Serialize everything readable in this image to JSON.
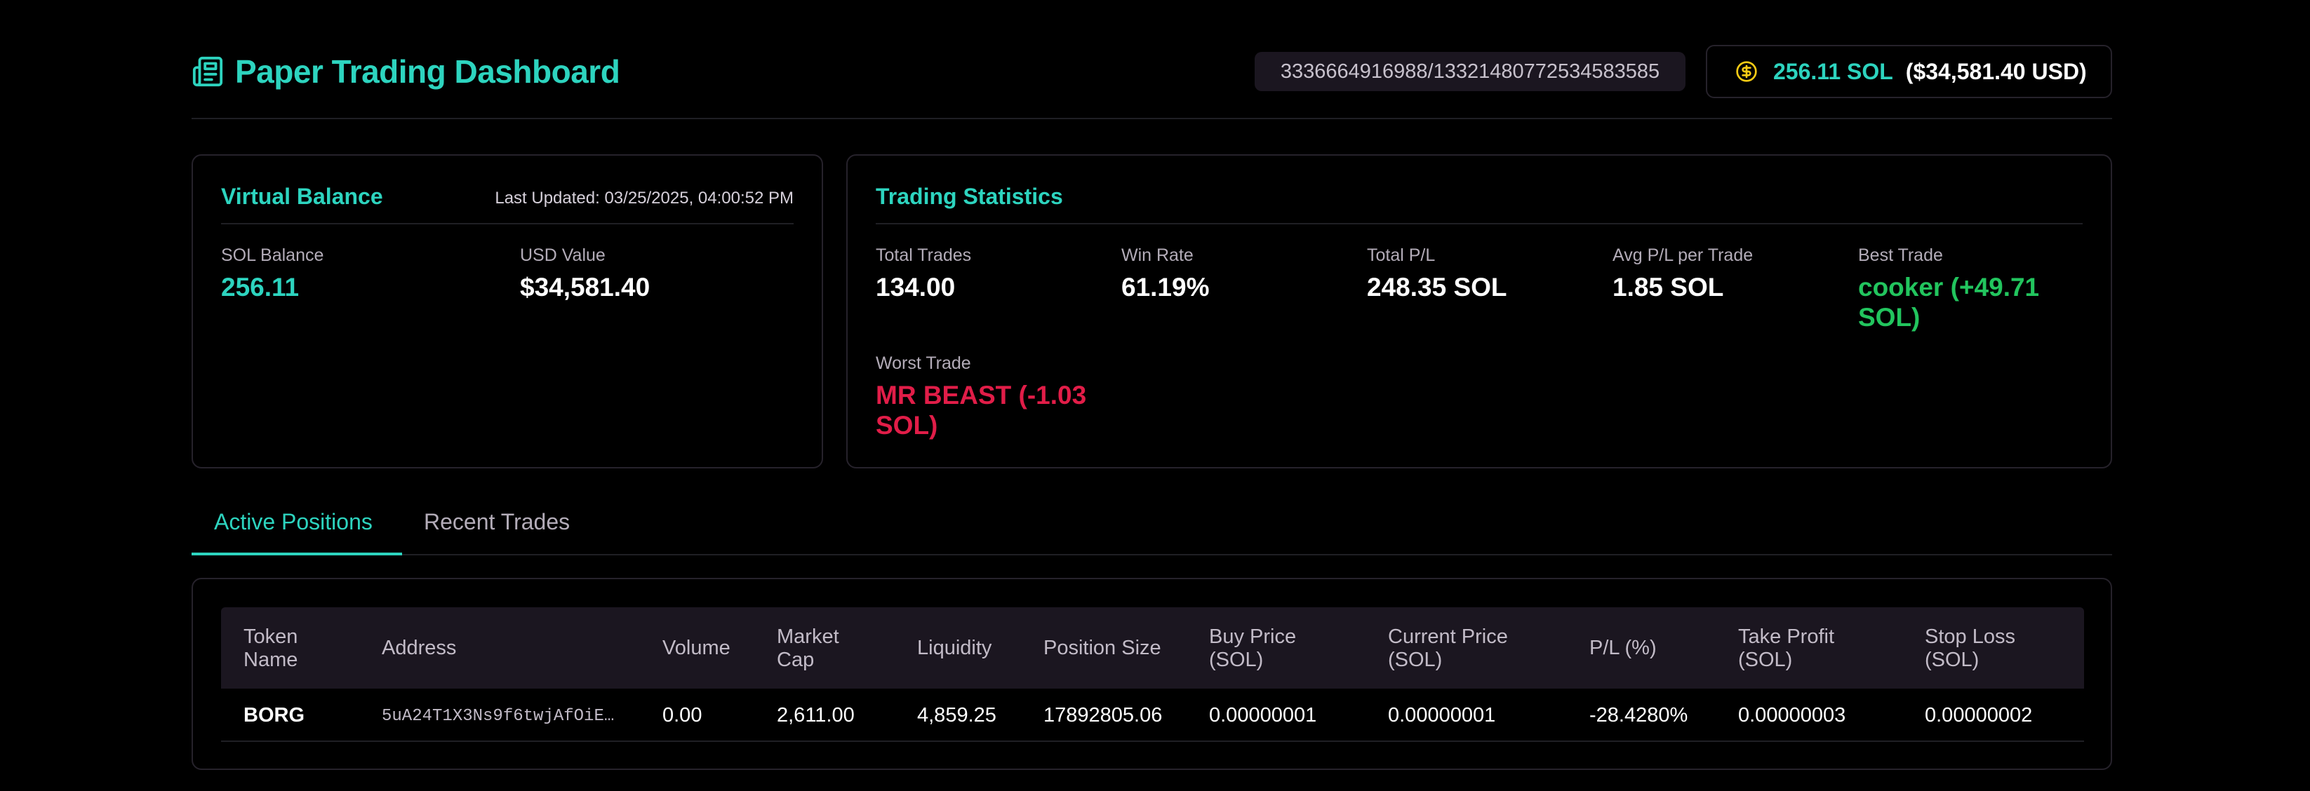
{
  "header": {
    "title": "Paper Trading Dashboard",
    "user_id": "3336664916988/13321480772534583585",
    "balance_sol": "256.11 SOL",
    "balance_usd": "($34,581.40 USD)"
  },
  "virtual_balance": {
    "title": "Virtual Balance",
    "last_updated": "Last Updated: 03/25/2025, 04:00:52 PM",
    "sol_label": "SOL Balance",
    "sol_value": "256.11",
    "usd_label": "USD Value",
    "usd_value": "$34,581.40"
  },
  "trading_stats": {
    "title": "Trading Statistics",
    "total_trades_label": "Total Trades",
    "total_trades": "134.00",
    "win_rate_label": "Win Rate",
    "win_rate": "61.19%",
    "total_pl_label": "Total P/L",
    "total_pl": "248.35 SOL",
    "avg_pl_label": "Avg P/L per Trade",
    "avg_pl": "1.85 SOL",
    "best_trade_label": "Best Trade",
    "best_trade_line1": "cooker (+49.71",
    "best_trade_line2": "SOL)",
    "worst_trade_label": "Worst Trade",
    "worst_trade_line1": "MR BEAST (-1.03",
    "worst_trade_line2": "SOL)"
  },
  "tabs": {
    "active": "Active Positions",
    "recent": "Recent Trades"
  },
  "table": {
    "headers": [
      {
        "l1": "Token",
        "l2": "Name"
      },
      {
        "l1": "Address",
        "l2": ""
      },
      {
        "l1": "Volume",
        "l2": ""
      },
      {
        "l1": "Market",
        "l2": "Cap"
      },
      {
        "l1": "Liquidity",
        "l2": ""
      },
      {
        "l1": "Position Size",
        "l2": ""
      },
      {
        "l1": "Buy Price",
        "l2": "(SOL)"
      },
      {
        "l1": "Current Price",
        "l2": "(SOL)"
      },
      {
        "l1": "P/L (%)",
        "l2": ""
      },
      {
        "l1": "Take Profit",
        "l2": "(SOL)"
      },
      {
        "l1": "Stop Loss",
        "l2": "(SOL)"
      }
    ],
    "rows": [
      {
        "token": "BORG",
        "address": "5uA24T1X3Ns9f6twjAfOiE…",
        "volume": "0.00",
        "market_cap": "2,611.00",
        "liquidity": "4,859.25",
        "position_size": "17892805.06",
        "buy_price": "0.00000001",
        "current_price": "0.00000001",
        "pl_pct": "-28.4280%",
        "take_profit": "0.00000003",
        "stop_loss": "0.00000002"
      }
    ]
  },
  "colors": {
    "accent": "#2dd4bf",
    "positive": "#22c55e",
    "negative": "#e11d48",
    "coin": "#facc15"
  },
  "icons": {
    "brand": "newspaper-icon",
    "balance": "dollar-coin-icon"
  }
}
